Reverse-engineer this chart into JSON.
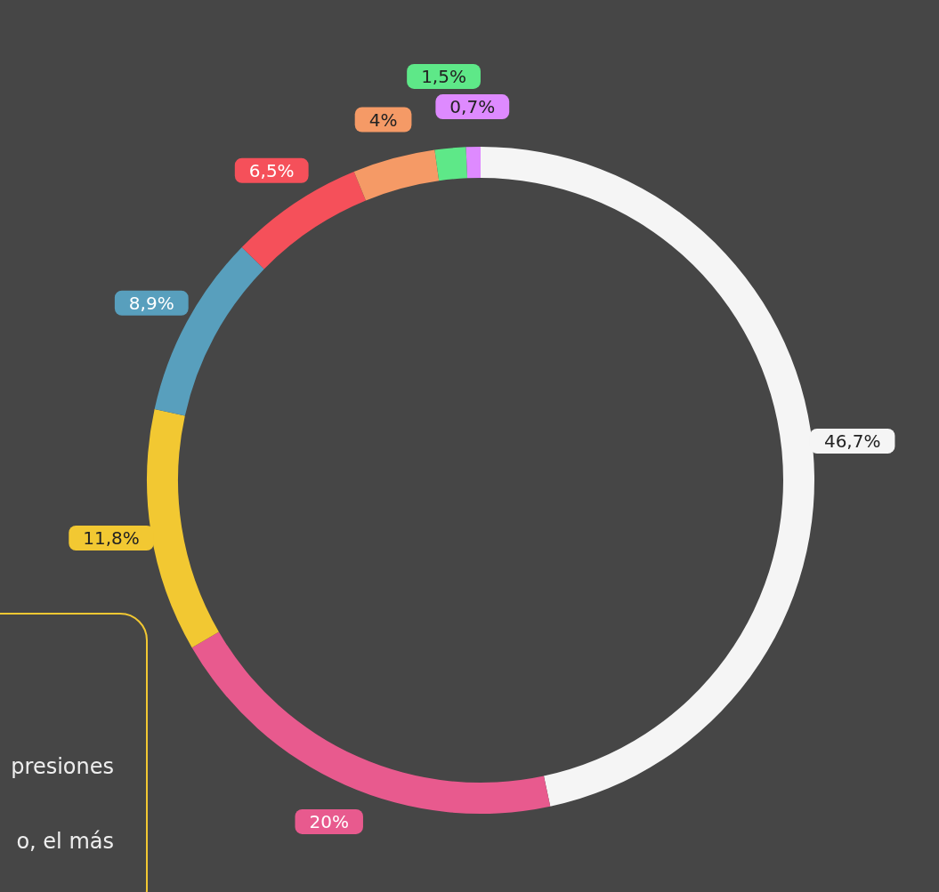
{
  "chart_data": {
    "type": "donut",
    "categories": [
      null,
      null,
      null,
      null,
      null,
      null,
      null,
      null
    ],
    "values": [
      46.7,
      20,
      11.8,
      8.9,
      6.5,
      4,
      1.5,
      0.7
    ],
    "colors": [
      "#f5f5f5",
      "#e85a8e",
      "#f2c832",
      "#589fbd",
      "#f5505a",
      "#f59a66",
      "#5ee888",
      "#de8aff"
    ],
    "value_labels": [
      "46,7%",
      "20%",
      "11,8%",
      "8,9%",
      "6,5%",
      "4%",
      "1,5%",
      "0,7%"
    ],
    "annotations": [
      "presiones",
      "o, el más"
    ]
  }
}
